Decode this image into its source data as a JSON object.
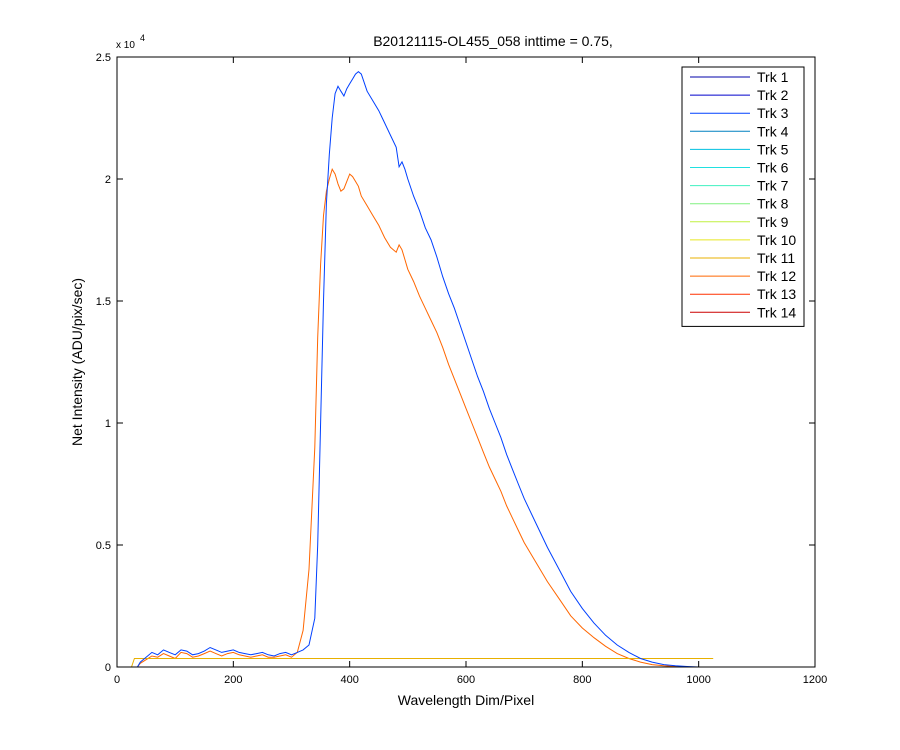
{
  "chart_data": {
    "type": "line",
    "title": "B20121115-OL455_058 inttime = 0.75,",
    "xlabel": "Wavelength Dim/Pixel",
    "ylabel": "Net Intensity (ADU/pix/sec)",
    "xlim": [
      0,
      1200
    ],
    "ylim": [
      0,
      25000
    ],
    "xticks": [
      0,
      200,
      400,
      600,
      800,
      1000,
      1200
    ],
    "xtick_labels": [
      "0",
      "200",
      "400",
      "600",
      "800",
      "1000",
      "1200"
    ],
    "yticks": [
      0,
      5000,
      10000,
      15000,
      20000,
      25000
    ],
    "ytick_labels": [
      "0",
      "0.5",
      "1",
      "1.5",
      "2",
      "2.5"
    ],
    "y_exponent_label": {
      "base": "x 10",
      "exp": "4"
    },
    "grid": false,
    "legend_position": "top-right",
    "series": [
      {
        "name": "Trk 1",
        "color": "#0000aa",
        "x": [
          0,
          25,
          35,
          1025
        ],
        "y": [
          0,
          0,
          0,
          0
        ]
      },
      {
        "name": "Trk 2",
        "color": "#0000cc",
        "x": [
          0,
          25,
          35,
          1025
        ],
        "y": [
          0,
          0,
          0,
          0
        ]
      },
      {
        "name": "Trk 3",
        "color": "#0040ff",
        "x": [
          0,
          25,
          35,
          40,
          50,
          60,
          70,
          80,
          90,
          100,
          110,
          120,
          130,
          140,
          150,
          160,
          170,
          180,
          190,
          200,
          210,
          220,
          230,
          240,
          250,
          260,
          270,
          280,
          290,
          300,
          310,
          320,
          330,
          340,
          345,
          350,
          355,
          360,
          365,
          370,
          375,
          380,
          385,
          390,
          395,
          400,
          405,
          410,
          415,
          420,
          430,
          440,
          450,
          460,
          470,
          480,
          485,
          490,
          495,
          500,
          510,
          520,
          530,
          540,
          550,
          560,
          570,
          580,
          590,
          600,
          610,
          620,
          630,
          640,
          650,
          660,
          670,
          680,
          690,
          700,
          720,
          740,
          760,
          780,
          800,
          820,
          840,
          860,
          880,
          900,
          920,
          940,
          960,
          980,
          1000,
          1010,
          1025
        ],
        "y": [
          0,
          0,
          0,
          200,
          400,
          600,
          500,
          700,
          600,
          500,
          700,
          650,
          500,
          550,
          650,
          800,
          700,
          600,
          650,
          700,
          600,
          550,
          500,
          550,
          600,
          500,
          450,
          550,
          600,
          500,
          600,
          700,
          900,
          2000,
          5000,
          10000,
          15000,
          19000,
          21000,
          22500,
          23500,
          23800,
          23600,
          23400,
          23700,
          23900,
          24100,
          24300,
          24400,
          24300,
          23600,
          23200,
          22800,
          22300,
          21800,
          21300,
          20500,
          20700,
          20400,
          20000,
          19300,
          18700,
          18000,
          17500,
          16800,
          16000,
          15300,
          14700,
          14000,
          13300,
          12600,
          11900,
          11300,
          10600,
          10000,
          9400,
          8700,
          8100,
          7500,
          6900,
          5900,
          4900,
          4000,
          3100,
          2400,
          1800,
          1300,
          900,
          600,
          350,
          200,
          100,
          50,
          20,
          0,
          0,
          0
        ]
      },
      {
        "name": "Trk 4",
        "color": "#0080c0",
        "x": [
          0,
          25,
          35,
          1025
        ],
        "y": [
          0,
          0,
          0,
          0
        ]
      },
      {
        "name": "Trk 5",
        "color": "#00c0e0",
        "x": [
          0,
          25,
          35,
          1025
        ],
        "y": [
          0,
          0,
          0,
          0
        ]
      },
      {
        "name": "Trk 6",
        "color": "#20e0e0",
        "x": [
          0,
          25,
          35,
          1025
        ],
        "y": [
          0,
          0,
          0,
          0
        ]
      },
      {
        "name": "Trk 7",
        "color": "#40f0c0",
        "x": [
          0,
          25,
          35,
          1025
        ],
        "y": [
          0,
          0,
          0,
          0
        ]
      },
      {
        "name": "Trk 8",
        "color": "#80f080",
        "x": [
          0,
          25,
          35,
          1025
        ],
        "y": [
          0,
          0,
          0,
          0
        ]
      },
      {
        "name": "Trk 9",
        "color": "#c0f040",
        "x": [
          0,
          25,
          35,
          1025
        ],
        "y": [
          0,
          0,
          0,
          0
        ]
      },
      {
        "name": "Trk 10",
        "color": "#e8e820",
        "x": [
          0,
          25,
          35,
          1025
        ],
        "y": [
          0,
          0,
          0,
          0
        ]
      },
      {
        "name": "Trk 11",
        "color": "#e8b000",
        "x": [
          0,
          25,
          30,
          1025
        ],
        "y": [
          0,
          0,
          350,
          350
        ]
      },
      {
        "name": "Trk 12",
        "color": "#ff6600",
        "x": [
          0,
          25,
          35,
          40,
          50,
          60,
          70,
          80,
          90,
          100,
          110,
          120,
          130,
          140,
          150,
          160,
          170,
          180,
          190,
          200,
          210,
          220,
          230,
          240,
          250,
          260,
          270,
          280,
          290,
          300,
          310,
          320,
          330,
          340,
          345,
          350,
          355,
          360,
          365,
          370,
          375,
          380,
          385,
          390,
          395,
          400,
          405,
          410,
          415,
          420,
          430,
          440,
          450,
          460,
          470,
          480,
          485,
          490,
          495,
          500,
          510,
          520,
          530,
          540,
          550,
          560,
          570,
          580,
          590,
          600,
          610,
          620,
          630,
          640,
          650,
          660,
          670,
          680,
          690,
          700,
          720,
          740,
          760,
          780,
          800,
          820,
          840,
          860,
          880,
          900,
          920,
          940,
          960,
          980,
          1000,
          1010,
          1025
        ],
        "y": [
          0,
          0,
          0,
          150,
          300,
          450,
          400,
          550,
          450,
          350,
          600,
          550,
          400,
          450,
          550,
          650,
          550,
          450,
          550,
          600,
          500,
          450,
          400,
          450,
          500,
          400,
          400,
          450,
          500,
          400,
          600,
          1500,
          4000,
          9000,
          13500,
          16500,
          18500,
          19500,
          20000,
          20400,
          20200,
          19800,
          19500,
          19600,
          19900,
          20200,
          20100,
          19900,
          19700,
          19300,
          18900,
          18500,
          18100,
          17600,
          17200,
          17000,
          17300,
          17100,
          16700,
          16300,
          15800,
          15200,
          14700,
          14200,
          13700,
          13100,
          12400,
          11800,
          11200,
          10600,
          10000,
          9400,
          8800,
          8200,
          7700,
          7200,
          6600,
          6100,
          5600,
          5100,
          4300,
          3500,
          2800,
          2100,
          1600,
          1200,
          850,
          550,
          350,
          200,
          100,
          50,
          20,
          0,
          0,
          0,
          0
        ]
      },
      {
        "name": "Trk 13",
        "color": "#ff3000",
        "x": [
          0,
          25,
          35,
          1025
        ],
        "y": [
          0,
          0,
          0,
          0
        ]
      },
      {
        "name": "Trk 14",
        "color": "#cc0000",
        "x": [
          0,
          25,
          35,
          1025
        ],
        "y": [
          0,
          0,
          0,
          0
        ]
      }
    ]
  }
}
